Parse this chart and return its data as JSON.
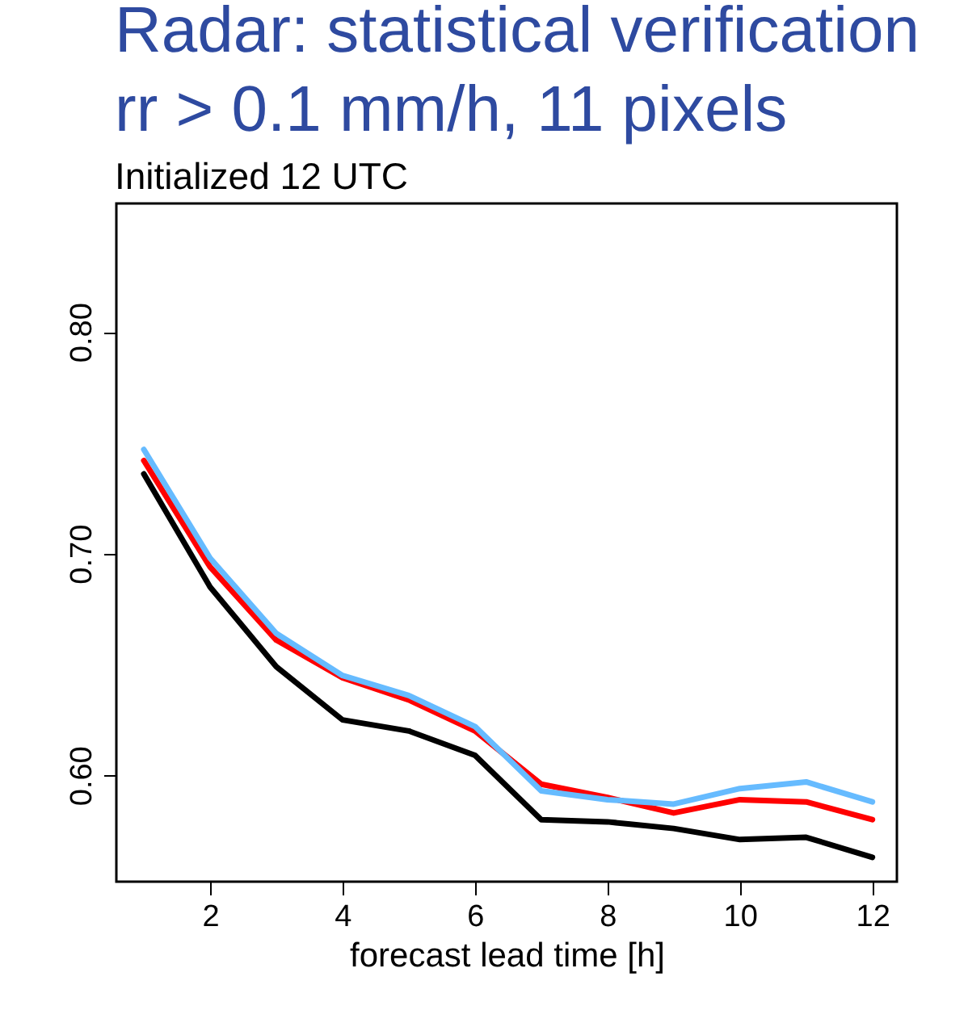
{
  "chart_data": {
    "type": "line",
    "title": "Radar: statistical verification",
    "subtitle": "rr > 0.1 mm/h, 11 pixels",
    "annotations": [
      "Initialized 12 UTC"
    ],
    "xlabel": "forecast lead time [h]",
    "x": [
      1,
      2,
      3,
      4,
      5,
      6,
      7,
      8,
      9,
      10,
      11,
      12
    ],
    "series": [
      {
        "color": "#000000",
        "values": [
          0.736,
          0.685,
          0.649,
          0.625,
          0.62,
          0.609,
          0.58,
          0.579,
          0.576,
          0.571,
          0.572,
          0.563
        ]
      },
      {
        "color": "#ff0000",
        "values": [
          0.742,
          0.694,
          0.661,
          0.644,
          0.634,
          0.62,
          0.596,
          0.59,
          0.583,
          0.589,
          0.588,
          0.58
        ]
      },
      {
        "color": "#66bbff",
        "values": [
          0.747,
          0.698,
          0.664,
          0.645,
          0.636,
          0.622,
          0.593,
          0.589,
          0.587,
          0.594,
          0.597,
          0.588
        ]
      }
    ],
    "xlim": [
      0.585,
      12.37
    ],
    "xticks": [
      2,
      4,
      6,
      8,
      10,
      12
    ],
    "ylim": [
      0.552,
      0.858
    ],
    "yticks": [
      {
        "value": 0.6,
        "label": "0.60"
      },
      {
        "value": 0.7,
        "label": "0.70"
      },
      {
        "value": 0.8,
        "label": "0.80"
      }
    ],
    "grid": false,
    "marker": "none",
    "line_style": "solid"
  }
}
